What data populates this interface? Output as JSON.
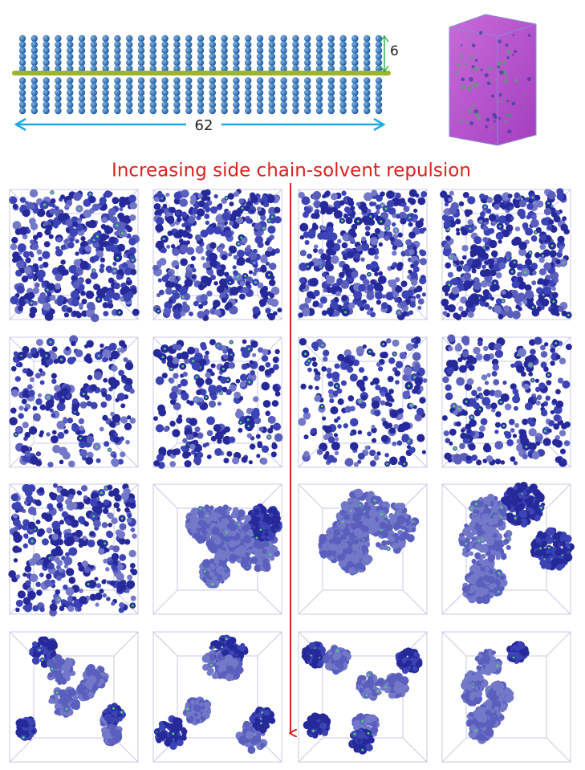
{
  "figure": {
    "dimensions": {
      "side_chain": "6",
      "backbone": "62"
    },
    "arrow_label": "Increasing side chain-solvent repulsion"
  }
}
